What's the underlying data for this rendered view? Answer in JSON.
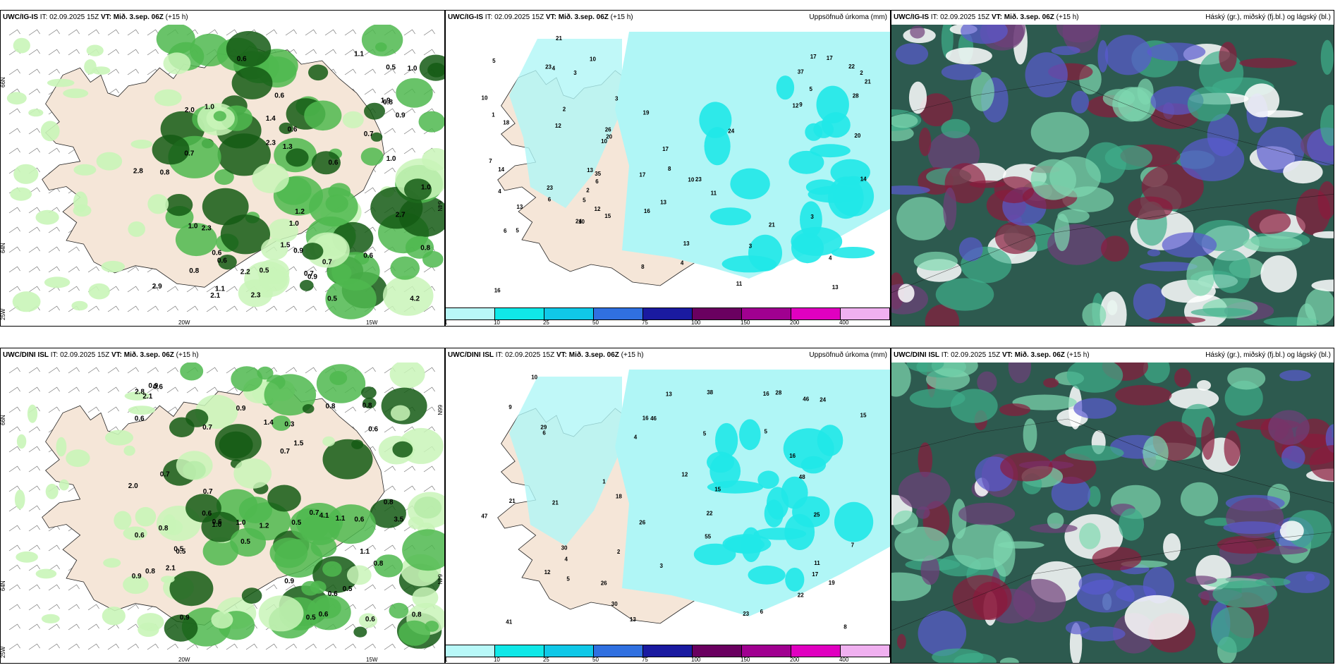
{
  "colors": {
    "land": "#f5e6d8",
    "precip_light": "#b0f6f6",
    "precip_mid": "#20e8e8",
    "green_light": "#c9f5b8",
    "green_mid": "#4fb84f",
    "green_dark": "#145a14",
    "cloud_dark": "#2d5a4f",
    "cloud_red": "#8a1a3c",
    "cloud_blue": "#5a5ad0"
  },
  "panels": [
    {
      "id": "ig-wind",
      "model": "UWC/IG-IS",
      "it": "IT: 02.09.2025 15Z",
      "vt": "VT: Mið. 3.sep. 06Z",
      "lead": "(+15 h)",
      "right_title": "",
      "axis": {
        "lat_top": "66N",
        "lat_mid": "64N",
        "lon_bl": "25W",
        "lon_b1": "20W",
        "lon_b2": "15W",
        "lon_rb": "66N",
        "lat_r": "64N"
      },
      "values": [
        "1.0",
        "2.0",
        "2.1",
        "0.5",
        "1.2",
        "2.2",
        "2.7",
        "2.3",
        "2.8",
        "0.5",
        "0.6",
        "2.3",
        "1.9",
        "0.5",
        "0.6",
        "1.0",
        "2.9",
        "0.9",
        "1.0",
        "0.8",
        "1.1",
        "0.6",
        "0.9",
        "0.8",
        "1.4",
        "0.7",
        "4.2",
        "0.9",
        "0.6",
        "1.0",
        "0.8",
        "0.6",
        "0.8",
        "1.1",
        "1.5",
        "0.6",
        "2.3",
        "0.7",
        "0.6",
        "1.3",
        "0.7",
        "1.0",
        "0.7",
        "1.0"
      ]
    },
    {
      "id": "ig-precip",
      "model": "UWC/IG-IS",
      "it": "IT: 02.09.2025 15Z",
      "vt": "VT: Mið. 3.sep. 06Z",
      "lead": "(+15 h)",
      "right_title": "Uppsöfnuð úrkoma (mm)",
      "values": [
        "1",
        "3",
        "3",
        "4",
        "5",
        "10",
        "13",
        "16",
        "15",
        "21",
        "23",
        "13",
        "17",
        "11",
        "14",
        "17",
        "13",
        "8",
        "10",
        "7",
        "10",
        "24",
        "10",
        "21",
        "2",
        "3",
        "5",
        "6",
        "6",
        "4",
        "23",
        "22",
        "26",
        "21",
        "28",
        "16",
        "35",
        "20",
        "18",
        "37",
        "12",
        "13",
        "19",
        "23",
        "17",
        "6",
        "5",
        "4",
        "10",
        "20",
        "24",
        "17",
        "12",
        "12",
        "14",
        "13",
        "8",
        "9",
        "11",
        "2",
        "3",
        "4",
        "2",
        "5"
      ],
      "legend": [
        "1",
        "10",
        "25",
        "50",
        "75",
        "100",
        "150",
        "200",
        "400"
      ]
    },
    {
      "id": "ig-cloud",
      "model": "UWC/IG-IS",
      "it": "IT: 02.09.2025 15Z",
      "vt": "VT: Mið. 3.sep. 06Z",
      "lead": "(+15 h)",
      "right_title": "Háský (gr.), miðský (fj.bl.) og lágský (bl.)"
    },
    {
      "id": "dini-wind",
      "model": "UWC/DINI ISL",
      "it": "IT: 02.09.2025 15Z",
      "vt": "VT: Mið. 3.sep. 06Z",
      "lead": "(+15 h)",
      "right_title": "",
      "axis": {
        "lat_top": "66N",
        "lat_mid": "64N",
        "lon_bl": "25W",
        "lon_b1": "20W",
        "lon_b2": "15W",
        "lon_rb": "66N",
        "lat_r": "64N"
      },
      "values": [
        "0.6",
        "0.8",
        "0.7",
        "0.5",
        "0.5",
        "0.6",
        "4.1",
        "3.5",
        "0.9",
        "0.6",
        "0.6",
        "1.0",
        "0.3",
        "2.1",
        "0.5",
        "0.6",
        "0.8",
        "0.9",
        "0.9",
        "0.8",
        "0.5",
        "0.6",
        "1.4",
        "0.9",
        "0.8",
        "0.6",
        "0.9",
        "0.8",
        "0.7",
        "0.6",
        "1.2",
        "1.1",
        "0.8",
        "0.7",
        "0.6",
        "0.8",
        "0.7",
        "0.5",
        "1.0",
        "1.1",
        "1.5",
        "2.0",
        "2.1",
        "2.8",
        "0.7",
        "0.6",
        "0.5"
      ]
    },
    {
      "id": "dini-precip",
      "model": "UWC/DINI ISL",
      "it": "IT: 02.09.2025 15Z",
      "vt": "VT: Mið. 3.sep. 06Z",
      "lead": "(+15 h)",
      "right_title": "Uppsöfnuð úrkoma (mm)",
      "values": [
        "1",
        "5",
        "5",
        "6",
        "4",
        "13",
        "16",
        "18",
        "16",
        "41",
        "11",
        "38",
        "46",
        "22",
        "24",
        "26",
        "46",
        "29",
        "12",
        "23",
        "17",
        "21",
        "16",
        "55",
        "47",
        "48",
        "30",
        "15",
        "12",
        "25",
        "22",
        "30",
        "28",
        "19",
        "26",
        "13",
        "21",
        "15",
        "5",
        "7",
        "8",
        "9",
        "10",
        "6",
        "4",
        "3",
        "2"
      ],
      "legend": [
        "1",
        "10",
        "25",
        "50",
        "75",
        "100",
        "150",
        "200",
        "400"
      ]
    },
    {
      "id": "dini-cloud",
      "model": "UWC/DINI ISL",
      "it": "IT: 02.09.2025 15Z",
      "vt": "VT: Mið. 3.sep. 06Z",
      "lead": "(+15 h)",
      "right_title": "Háský (gr.), miðský (fj.bl.) og lágský (bl.)"
    }
  ]
}
